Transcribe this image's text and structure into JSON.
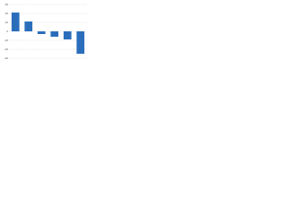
{
  "chart_data": {
    "type": "bar",
    "categories": [
      null,
      null,
      null,
      null,
      null,
      null
    ],
    "values": [
      21,
      11,
      -3,
      -6,
      -9,
      -25
    ],
    "color": "#2a6ebb",
    "ylim": [
      -30,
      30
    ],
    "yticks": [
      -30,
      -20,
      -10,
      0,
      10,
      20,
      30
    ],
    "grid": true
  }
}
